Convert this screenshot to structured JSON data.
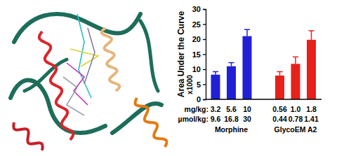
{
  "chart_data": {
    "type": "bar",
    "ylabel": "Area Under the Curve",
    "ylabel_unit": "x1000",
    "row_labels": [
      "mg/kg:",
      "µmol/kg:"
    ],
    "categories": [
      "3.2",
      "5.6",
      "10",
      "0.56",
      "1.0",
      "1.8"
    ],
    "categories_2": [
      "9.6",
      "16.8",
      "30",
      "0.44",
      "0.78",
      "1.41"
    ],
    "series": [
      {
        "name": "Morphine",
        "color": "#2020d8",
        "values": [
          8.2,
          11.0,
          21.0,
          null,
          null,
          null
        ],
        "errors": [
          1.0,
          1.2,
          2.2,
          null,
          null,
          null
        ]
      },
      {
        "name": "GlycoEM A2",
        "color": "#e8201c",
        "values": [
          null,
          null,
          null,
          7.9,
          11.8,
          19.8
        ],
        "errors": [
          null,
          null,
          null,
          1.3,
          2.3,
          3.0
        ]
      }
    ],
    "ylim": [
      0,
      30
    ],
    "yticks": [
      0,
      5,
      10,
      15,
      20,
      25,
      30
    ],
    "grid": false
  }
}
